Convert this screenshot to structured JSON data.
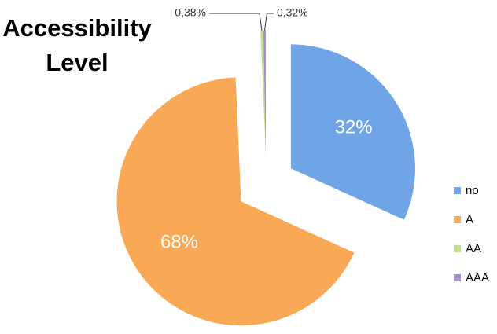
{
  "chart_data": {
    "type": "pie",
    "title": "Accessibility Level",
    "categories": [
      "no",
      "A",
      "AA",
      "AAA"
    ],
    "values": [
      32,
      68,
      0.38,
      0.32
    ],
    "value_labels": [
      "32%",
      "68%",
      "0,38%",
      "0,32%"
    ],
    "colors": [
      "#6fa5e6",
      "#f9a856",
      "#c3df8a",
      "#a88fd3"
    ],
    "legend": "right"
  }
}
